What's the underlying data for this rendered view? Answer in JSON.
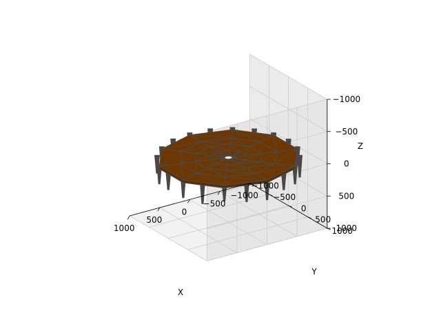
{
  "chart_data": {
    "type": "surface3d",
    "title": "",
    "xlabel": "X",
    "ylabel": "Y",
    "zlabel": "Z",
    "xlim": [
      -1000,
      1000
    ],
    "ylim": [
      -1000,
      1000
    ],
    "zlim": [
      -1000,
      1000
    ],
    "x_ticks": [
      "1000",
      "500",
      "0",
      "−500",
      "−1000"
    ],
    "y_ticks": [
      "1000",
      "500",
      "0",
      "−500",
      "−1000"
    ],
    "z_ticks": [
      "−1000",
      "−500",
      "0",
      "500",
      "1000"
    ],
    "grid": true,
    "surface": {
      "shape": "flat decagonal disc with small central hole",
      "outer_radius": 1000,
      "inner_radius": 60,
      "sides": 10,
      "z": 0,
      "spike_depth": 250
    },
    "colors": {
      "face": "#6e3700",
      "edge": "#4a4a4a",
      "spike": "#4d4646",
      "pane": "#f2f2f2",
      "grid": "#cccccc"
    }
  }
}
